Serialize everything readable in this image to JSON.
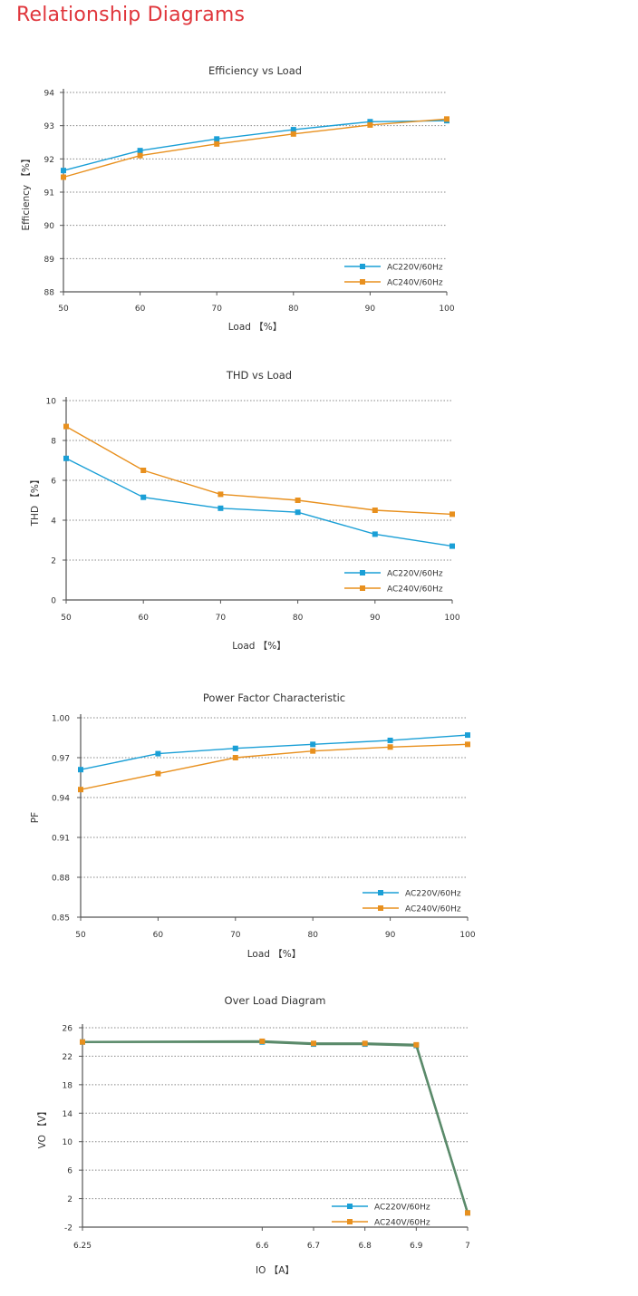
{
  "page": {
    "title": "Relationship Diagrams"
  },
  "colors": {
    "title": "#e0363c",
    "series_blue": "#1a9fd6",
    "series_orange": "#e8901e",
    "overlap_line": "#5a8a6a",
    "grid": "#888888",
    "axis": "#555555"
  },
  "chart_data": [
    {
      "type": "line",
      "title": "Efficiency vs Load",
      "xlabel": "Load 【%】",
      "ylabel": "Efficiency 【%】",
      "x": [
        50,
        60,
        70,
        80,
        90,
        100
      ],
      "xticks": [
        "50",
        "60",
        "70",
        "80",
        "90",
        "100"
      ],
      "yticks": [
        "88",
        "89",
        "90",
        "91",
        "92",
        "93",
        "94"
      ],
      "ylim": [
        88,
        94
      ],
      "xlim": [
        50,
        100
      ],
      "grid": true,
      "legend": "bottom-right",
      "series": [
        {
          "name": "AC220V/60Hz",
          "color": "#1a9fd6",
          "values": [
            91.65,
            92.25,
            92.6,
            92.88,
            93.12,
            93.15
          ]
        },
        {
          "name": "AC240V/60Hz",
          "color": "#e8901e",
          "values": [
            91.45,
            92.1,
            92.45,
            92.75,
            93.02,
            93.2
          ]
        }
      ]
    },
    {
      "type": "line",
      "title": "THD vs Load",
      "xlabel": "Load 【%】",
      "ylabel": "THD 【%】",
      "x": [
        50,
        60,
        70,
        80,
        90,
        100
      ],
      "xticks": [
        "50",
        "60",
        "70",
        "80",
        "90",
        "100"
      ],
      "yticks": [
        "0",
        "2",
        "4",
        "6",
        "8",
        "10"
      ],
      "ylim": [
        0,
        10
      ],
      "xlim": [
        50,
        100
      ],
      "grid": true,
      "legend": "bottom-right",
      "series": [
        {
          "name": "AC220V/60Hz",
          "color": "#1a9fd6",
          "values": [
            7.1,
            5.15,
            4.6,
            4.4,
            3.3,
            2.7
          ]
        },
        {
          "name": "AC240V/60Hz",
          "color": "#e8901e",
          "values": [
            8.7,
            6.5,
            5.3,
            5.0,
            4.5,
            4.3
          ]
        }
      ]
    },
    {
      "type": "line",
      "title": "Power Factor Characteristic",
      "xlabel": "Load 【%】",
      "ylabel": "PF",
      "x": [
        50,
        60,
        70,
        80,
        90,
        100
      ],
      "xticks": [
        "50",
        "60",
        "70",
        "80",
        "90",
        "100"
      ],
      "yticks": [
        "0.85",
        "0.88",
        "0.91",
        "0.94",
        "0.97",
        "1.00"
      ],
      "ylim": [
        0.85,
        1.0
      ],
      "xlim": [
        50,
        100
      ],
      "grid": true,
      "legend": "bottom-right",
      "series": [
        {
          "name": "AC220V/60Hz",
          "color": "#1a9fd6",
          "values": [
            0.961,
            0.973,
            0.977,
            0.98,
            0.983,
            0.987
          ]
        },
        {
          "name": "AC240V/60Hz",
          "color": "#e8901e",
          "values": [
            0.946,
            0.958,
            0.97,
            0.975,
            0.978,
            0.98
          ]
        }
      ]
    },
    {
      "type": "line",
      "title": "Over Load Diagram",
      "xlabel": "IO 【A】",
      "ylabel": "VO 【V】",
      "x": [
        6.25,
        6.6,
        6.7,
        6.8,
        6.9,
        7
      ],
      "xticks": [
        "6.25",
        "6.6",
        "6.7",
        "6.8",
        "6.9",
        "7"
      ],
      "yticks": [
        "-2",
        "2",
        "6",
        "10",
        "14",
        "18",
        "22",
        "26"
      ],
      "ylim": [
        -2,
        26
      ],
      "xlim": [
        6.25,
        7
      ],
      "grid": true,
      "legend": "bottom-right",
      "series": [
        {
          "name": "AC220V/60Hz",
          "color": "#1a9fd6",
          "values": [
            24.0,
            24.0,
            23.7,
            23.7,
            23.5,
            0.0
          ]
        },
        {
          "name": "AC240V/60Hz",
          "color": "#e8901e",
          "values": [
            24.0,
            24.1,
            23.8,
            23.8,
            23.6,
            0.0
          ]
        }
      ]
    }
  ]
}
